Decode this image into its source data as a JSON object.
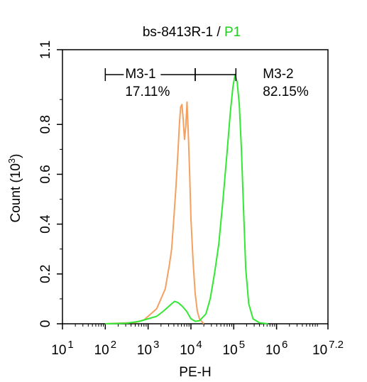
{
  "title": {
    "prefix": "bs-8413R-1 / ",
    "gate": "P1"
  },
  "colors": {
    "control": "#f4a060",
    "sample": "#33e833",
    "gate_label": "#22cc22"
  },
  "chart_data": {
    "type": "histogram",
    "xlabel": "PE-H",
    "ylabel": "Count  (10",
    "ylabel_exp": "3",
    "ylabel_close": ")",
    "x_scale": "log",
    "xlim": [
      1,
      7.2
    ],
    "ylim": [
      0,
      1.1
    ],
    "x_ticks": [
      {
        "pos": 1,
        "base": "10",
        "exp": "1"
      },
      {
        "pos": 2,
        "base": "10",
        "exp": "2"
      },
      {
        "pos": 3,
        "base": "10",
        "exp": "3"
      },
      {
        "pos": 4,
        "base": "10",
        "exp": "4"
      },
      {
        "pos": 5,
        "base": "10",
        "exp": "5"
      },
      {
        "pos": 6,
        "base": "10",
        "exp": "6"
      },
      {
        "pos": 7.2,
        "base": "10",
        "exp": "7.2"
      }
    ],
    "y_ticks": [
      {
        "value": 0,
        "label": "0"
      },
      {
        "value": 0.2,
        "label": "0.2"
      },
      {
        "value": 0.4,
        "label": "0.4"
      },
      {
        "value": 0.6,
        "label": "0.6"
      },
      {
        "value": 0.8,
        "label": "0.8"
      },
      {
        "value": 1.1,
        "label": "1.1"
      }
    ],
    "series": [
      {
        "key": "control",
        "points": [
          [
            2.0,
            0
          ],
          [
            2.7,
            0.005
          ],
          [
            2.9,
            0.015
          ],
          [
            3.0,
            0.03
          ],
          [
            3.2,
            0.06
          ],
          [
            3.3,
            0.1
          ],
          [
            3.4,
            0.14
          ],
          [
            3.5,
            0.24
          ],
          [
            3.55,
            0.3
          ],
          [
            3.6,
            0.42
          ],
          [
            3.65,
            0.55
          ],
          [
            3.7,
            0.7
          ],
          [
            3.73,
            0.8
          ],
          [
            3.76,
            0.87
          ],
          [
            3.79,
            0.88
          ],
          [
            3.82,
            0.82
          ],
          [
            3.85,
            0.74
          ],
          [
            3.88,
            0.79
          ],
          [
            3.91,
            0.89
          ],
          [
            3.94,
            0.76
          ],
          [
            3.97,
            0.6
          ],
          [
            4.0,
            0.42
          ],
          [
            4.05,
            0.25
          ],
          [
            4.1,
            0.12
          ],
          [
            4.15,
            0.05
          ],
          [
            4.2,
            0.02
          ],
          [
            4.3,
            0
          ]
        ]
      },
      {
        "key": "sample",
        "points": [
          [
            2.0,
            0
          ],
          [
            2.5,
            0.002
          ],
          [
            2.8,
            0.01
          ],
          [
            3.0,
            0.02
          ],
          [
            3.2,
            0.03
          ],
          [
            3.35,
            0.05
          ],
          [
            3.45,
            0.065
          ],
          [
            3.55,
            0.08
          ],
          [
            3.62,
            0.09
          ],
          [
            3.7,
            0.085
          ],
          [
            3.8,
            0.07
          ],
          [
            3.9,
            0.05
          ],
          [
            4.0,
            0.02
          ],
          [
            4.1,
            0.01
          ],
          [
            4.2,
            0.012
          ],
          [
            4.35,
            0.04
          ],
          [
            4.45,
            0.1
          ],
          [
            4.55,
            0.2
          ],
          [
            4.65,
            0.32
          ],
          [
            4.75,
            0.5
          ],
          [
            4.85,
            0.7
          ],
          [
            4.92,
            0.85
          ],
          [
            4.98,
            0.95
          ],
          [
            5.03,
            1.0
          ],
          [
            5.08,
            0.97
          ],
          [
            5.13,
            0.88
          ],
          [
            5.18,
            0.7
          ],
          [
            5.23,
            0.45
          ],
          [
            5.28,
            0.22
          ],
          [
            5.35,
            0.08
          ],
          [
            5.45,
            0.02
          ],
          [
            5.6,
            0.004
          ],
          [
            5.8,
            0
          ]
        ]
      }
    ],
    "gates": [
      {
        "name": "M3-1",
        "percent": "17.11%",
        "x_start": 2.0,
        "x_end": 4.1,
        "y": 1.0
      },
      {
        "name": "M3-2",
        "percent": "82.15%",
        "x_start": 4.1,
        "x_end": 5.05,
        "y": 1.0
      }
    ]
  }
}
